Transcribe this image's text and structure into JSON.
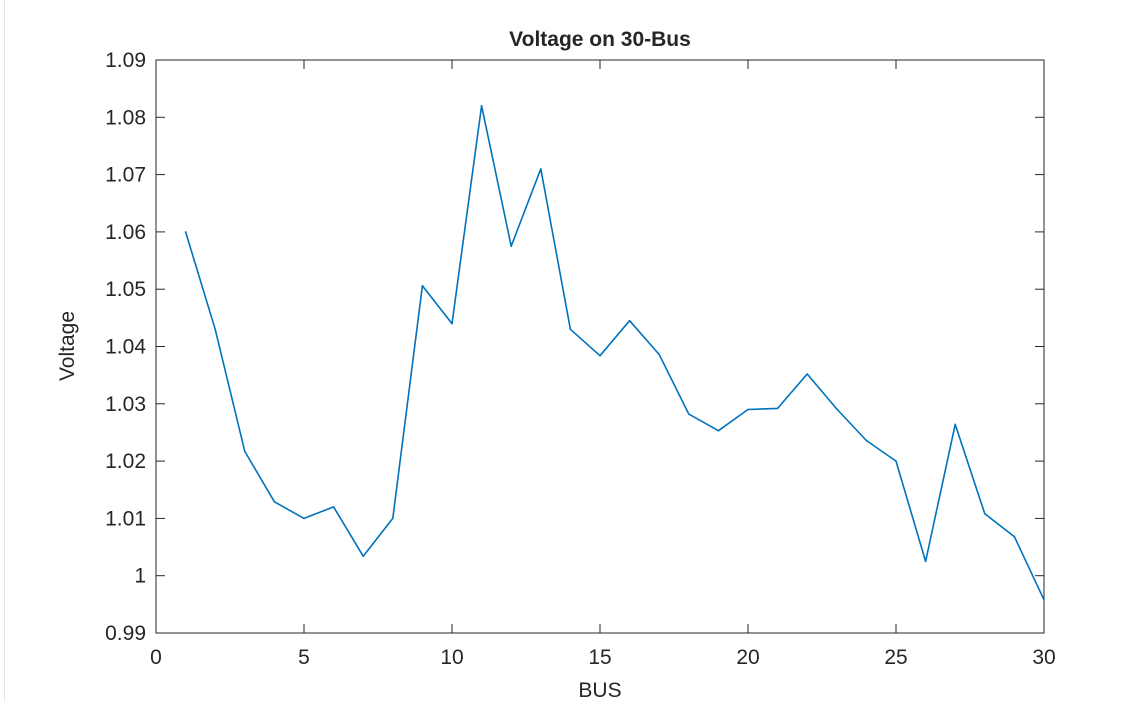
{
  "chart_data": {
    "type": "line",
    "title": "Voltage on 30-Bus",
    "xlabel": "BUS",
    "ylabel": "Voltage",
    "xlim": [
      0,
      30
    ],
    "ylim": [
      0.99,
      1.09
    ],
    "grid": false,
    "xticks": [
      0,
      5,
      10,
      15,
      20,
      25,
      30
    ],
    "xtick_labels": [
      "0",
      "5",
      "10",
      "15",
      "20",
      "25",
      "30"
    ],
    "yticks": [
      0.99,
      1.0,
      1.01,
      1.02,
      1.03,
      1.04,
      1.05,
      1.06,
      1.07,
      1.08,
      1.09
    ],
    "ytick_labels": [
      "0.99",
      "1",
      "1.01",
      "1.02",
      "1.03",
      "1.04",
      "1.05",
      "1.06",
      "1.07",
      "1.08",
      "1.09"
    ],
    "series_color": "#0072BD",
    "axis_color": "#262626",
    "series": [
      {
        "x": [
          1,
          2,
          3,
          4,
          5,
          6,
          7,
          8,
          9,
          10,
          11,
          12,
          13,
          14,
          15,
          16,
          17,
          18,
          19,
          20,
          21,
          22,
          23,
          24,
          25,
          26,
          27,
          28,
          29,
          30
        ],
        "values": [
          1.06,
          1.043,
          1.0217,
          1.0129,
          1.01,
          1.012,
          1.0034,
          1.01,
          1.0506,
          1.044,
          1.082,
          1.0575,
          1.071,
          1.043,
          1.0384,
          1.0445,
          1.0386,
          1.0282,
          1.0253,
          1.029,
          1.0292,
          1.0352,
          1.0291,
          1.0236,
          1.02,
          1.0025,
          1.0264,
          1.0108,
          1.0068,
          0.9958
        ]
      }
    ]
  }
}
